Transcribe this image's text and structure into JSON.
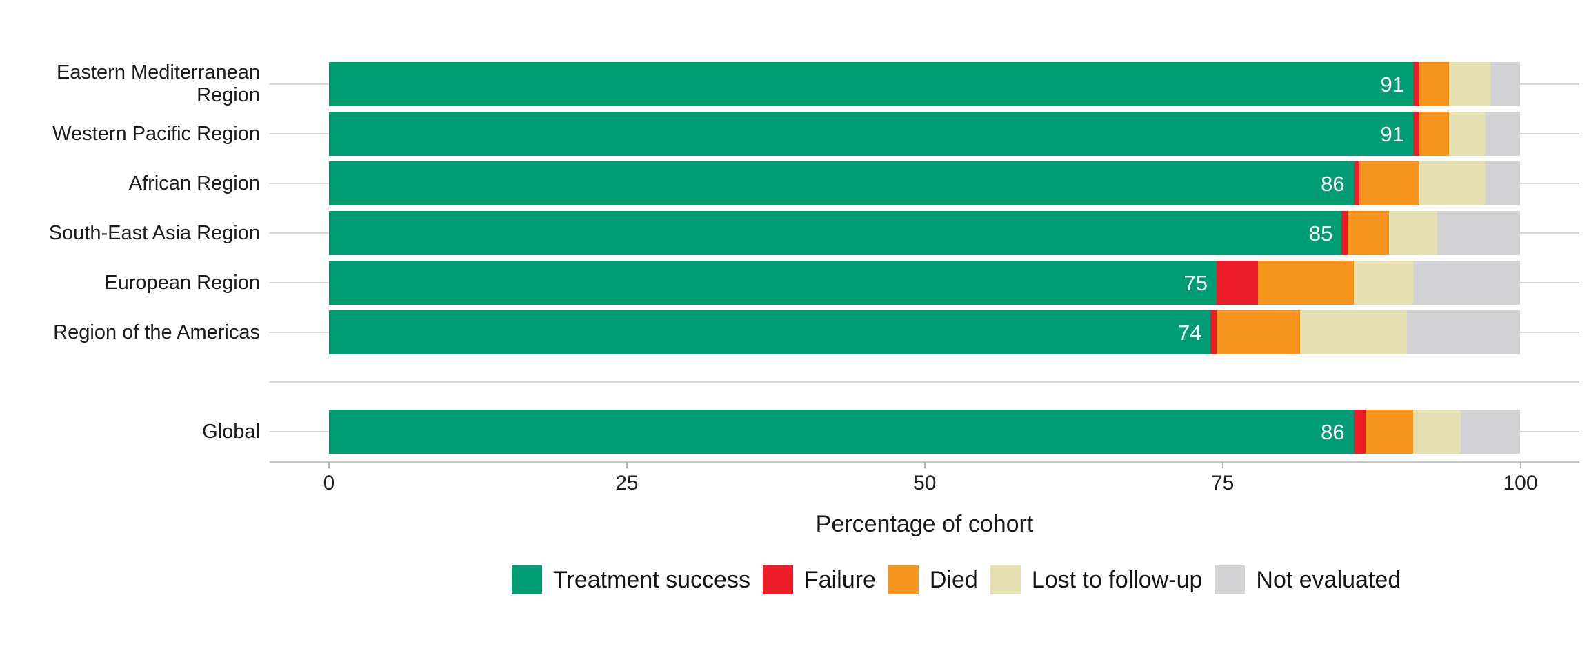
{
  "chart_data": {
    "type": "bar",
    "orientation": "horizontal",
    "stacked": true,
    "title": "",
    "xlabel": "Percentage of cohort",
    "ylabel": "",
    "xlim": [
      0,
      100
    ],
    "x_ticks": [
      0,
      25,
      50,
      75,
      100
    ],
    "x_tick_labels": [
      "0",
      "25",
      "50",
      "75",
      "100"
    ],
    "grid": "horizontal-major-only",
    "legend_position": "bottom",
    "categories": [
      "Eastern Mediterranean Region",
      "Western Pacific Region",
      "African Region",
      "South-East Asia Region",
      "European Region",
      "Region of the Americas",
      "Global"
    ],
    "gap_before_category": "Global",
    "bar_value_labels": [
      "91",
      "91",
      "86",
      "85",
      "75",
      "74",
      "86"
    ],
    "series": [
      {
        "name": "Treatment success",
        "color": "#009c73",
        "values": [
          91,
          91,
          86,
          85,
          74.5,
          74,
          86
        ]
      },
      {
        "name": "Failure",
        "color": "#ec1c29",
        "values": [
          0.5,
          0.5,
          0.5,
          0.5,
          3.5,
          0.5,
          1
        ]
      },
      {
        "name": "Died",
        "color": "#f7941e",
        "values": [
          2.5,
          2.5,
          5,
          3.5,
          8,
          7,
          4
        ]
      },
      {
        "name": "Lost to follow-up",
        "color": "#e5dfb2",
        "values": [
          3.5,
          3,
          5.5,
          4,
          5,
          9,
          4
        ]
      },
      {
        "name": "Not evaluated",
        "color": "#d2d2d4",
        "values": [
          2.5,
          3,
          3,
          7,
          9,
          9.5,
          5
        ]
      }
    ],
    "colors": {
      "gridline": "#d8d8d8",
      "axis_line": "#c6c6c6",
      "tick_mark": "#b1b1b1",
      "text": "#1b1b1b",
      "bar_label_text": "#ffffff"
    }
  }
}
